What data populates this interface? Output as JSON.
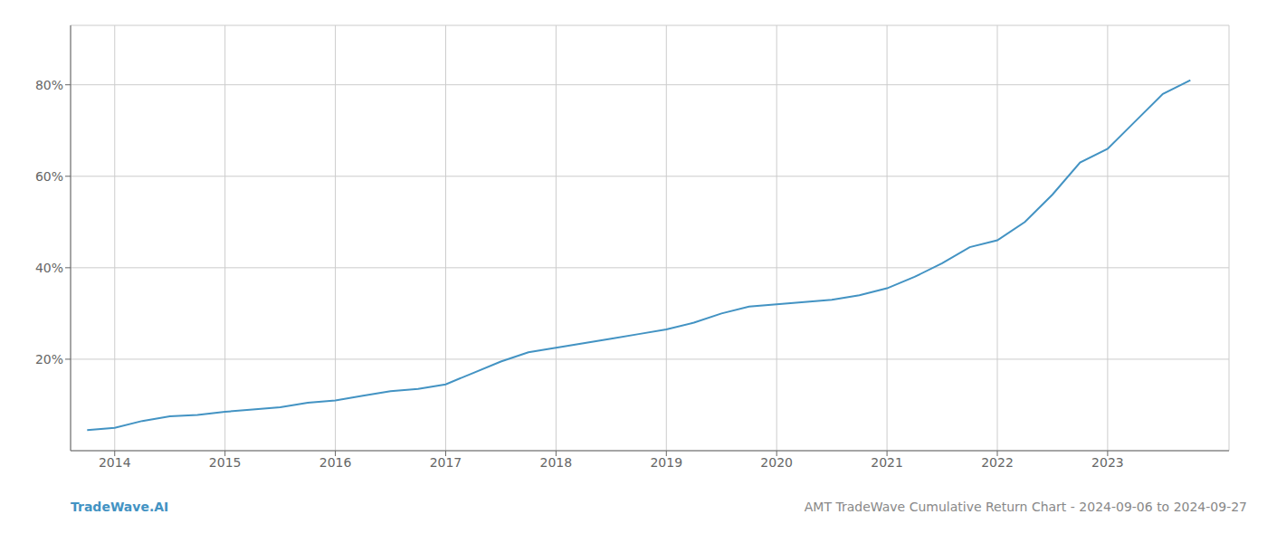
{
  "chart_data": {
    "type": "line",
    "title": "AMT TradeWave Cumulative Return Chart - 2024-09-06 to 2024-09-27",
    "annotations": [
      "TradeWave.AI"
    ],
    "color": "#4393c3",
    "grid": true,
    "x": [
      2013.75,
      2014.0,
      2014.25,
      2014.5,
      2014.75,
      2015.0,
      2015.25,
      2015.5,
      2015.75,
      2016.0,
      2016.25,
      2016.5,
      2016.75,
      2017.0,
      2017.25,
      2017.5,
      2017.75,
      2018.0,
      2018.25,
      2018.5,
      2018.75,
      2019.0,
      2019.25,
      2019.5,
      2019.75,
      2020.0,
      2020.25,
      2020.5,
      2020.75,
      2021.0,
      2021.25,
      2021.5,
      2021.75,
      2022.0,
      2022.25,
      2022.5,
      2022.75,
      2023.0,
      2023.25,
      2023.5,
      2023.75
    ],
    "values": [
      4.5,
      5.0,
      6.5,
      7.5,
      7.8,
      8.5,
      9.0,
      9.5,
      10.5,
      11.0,
      12.0,
      13.0,
      13.5,
      14.5,
      17.0,
      19.5,
      21.5,
      22.5,
      23.5,
      24.5,
      25.5,
      26.5,
      28.0,
      30.0,
      31.5,
      32.0,
      32.5,
      33.0,
      34.0,
      35.5,
      38.0,
      41.0,
      44.5,
      46.0,
      50.0,
      56.0,
      63.0,
      66.0,
      72.0,
      78.0,
      81.0
    ],
    "xlim": [
      2013.6,
      2024.1
    ],
    "xticks": [
      2014,
      2015,
      2016,
      2017,
      2018,
      2019,
      2020,
      2021,
      2022,
      2023
    ],
    "ylim": [
      0,
      93
    ],
    "yticks": [
      {
        "value": 20,
        "label": "20%"
      },
      {
        "value": 40,
        "label": "40%"
      },
      {
        "value": 60,
        "label": "60%"
      },
      {
        "value": 80,
        "label": "80%"
      }
    ]
  }
}
